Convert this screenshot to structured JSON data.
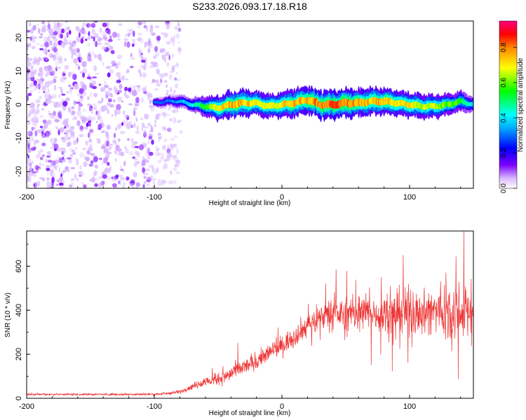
{
  "figure_title": "S233.2026.093.17.18.R18",
  "chart_data": [
    {
      "type": "heatmap",
      "title": "",
      "xlabel": "Height of straight line (km)",
      "ylabel": "Frequency (Hz)",
      "xlim": [
        -200,
        150
      ],
      "ylim": [
        -25,
        25
      ],
      "xticks": [
        "-200",
        "-100",
        "0",
        "100"
      ],
      "xtick_values": [
        -200,
        -100,
        0,
        100
      ],
      "yticks": [
        "-20",
        "-10",
        "0",
        "10",
        "20"
      ],
      "ytick_values": [
        -20,
        -10,
        0,
        10,
        20
      ],
      "colorbar": {
        "label": "Normalized spectral amplitude",
        "range": [
          0.0,
          0.95
        ],
        "ticks": [
          "0.0",
          "0.2",
          "0.4",
          "0.6",
          "0.8"
        ],
        "tick_values": [
          0.0,
          0.2,
          0.4,
          0.6,
          0.8
        ],
        "colormap": [
          "#ffffff",
          "#7b00ff",
          "#0000ff",
          "#00ffff",
          "#00ff00",
          "#ffff00",
          "#ff0000",
          "#ff0080"
        ]
      },
      "noise_region": {
        "x": [
          -200,
          -80
        ],
        "y": [
          -25,
          25
        ],
        "typical_amplitude": 0.05
      },
      "signal_ridge": {
        "x": [
          -100,
          -90,
          -80,
          -70,
          -60,
          -50,
          -40,
          -30,
          -20,
          -10,
          0,
          10,
          20,
          30,
          40,
          50,
          60,
          70,
          80,
          90,
          100,
          110,
          120,
          130,
          140,
          150
        ],
        "freq": [
          0.5,
          1.0,
          1.0,
          0.0,
          -0.5,
          -1.0,
          0.0,
          0.5,
          0.5,
          -0.5,
          0.0,
          0.5,
          1.5,
          0.0,
          0.0,
          0.5,
          0.5,
          1.0,
          1.0,
          0.5,
          0.0,
          -0.5,
          -0.5,
          0.0,
          1.0,
          0.0
        ],
        "amplitude": [
          0.3,
          0.3,
          0.35,
          0.4,
          0.55,
          0.7,
          0.75,
          0.75,
          0.7,
          0.65,
          0.7,
          0.75,
          0.75,
          0.8,
          0.8,
          0.8,
          0.75,
          0.75,
          0.75,
          0.7,
          0.7,
          0.65,
          0.65,
          0.6,
          0.55,
          0.4
        ]
      }
    },
    {
      "type": "line",
      "title": "",
      "xlabel": "Height of straight line (km)",
      "ylabel": "SNR (10 * v/v)",
      "xlim": [
        -200,
        150
      ],
      "ylim": [
        0,
        760
      ],
      "xticks": [
        "-200",
        "-100",
        "0",
        "100"
      ],
      "xtick_values": [
        -200,
        -100,
        0,
        100
      ],
      "yticks": [
        "0",
        "200",
        "400",
        "600"
      ],
      "ytick_values": [
        0,
        200,
        400,
        600
      ],
      "series": [
        {
          "color": "#ee3333",
          "x": [
            -200,
            -190,
            -180,
            -170,
            -160,
            -150,
            -140,
            -130,
            -120,
            -110,
            -100,
            -90,
            -80,
            -70,
            -60,
            -50,
            -40,
            -30,
            -20,
            -10,
            0,
            10,
            20,
            30,
            40,
            50,
            60,
            70,
            80,
            90,
            100,
            110,
            120,
            130,
            140,
            150
          ],
          "mean": [
            18,
            18,
            18,
            18,
            18,
            18,
            18,
            18,
            18,
            18,
            18,
            22,
            30,
            55,
            75,
            85,
            110,
            140,
            170,
            205,
            240,
            285,
            330,
            370,
            385,
            380,
            390,
            385,
            385,
            390,
            395,
            390,
            395,
            400,
            410,
            380
          ],
          "spread": [
            8,
            8,
            8,
            8,
            8,
            8,
            8,
            8,
            8,
            8,
            8,
            10,
            14,
            22,
            35,
            45,
            55,
            60,
            60,
            65,
            70,
            75,
            80,
            90,
            100,
            110,
            120,
            130,
            140,
            150,
            160,
            170,
            180,
            190,
            200,
            180
          ]
        }
      ]
    }
  ]
}
